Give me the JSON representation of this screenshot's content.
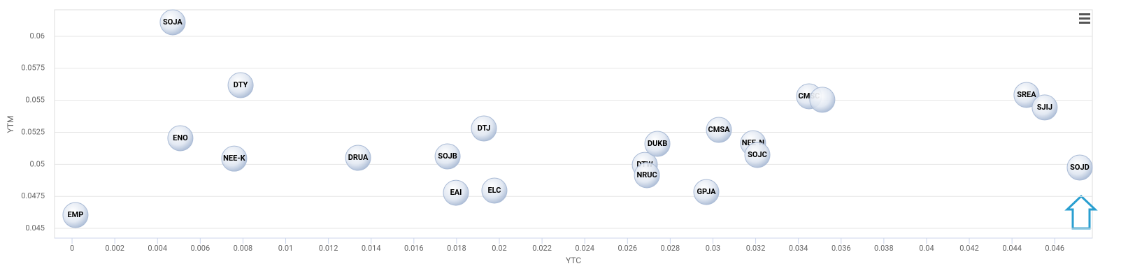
{
  "chart_data": {
    "type": "scatter",
    "x_label": "YTC",
    "y_label": "YTM",
    "labels": [
      "SOJA",
      "DTY",
      "ENO",
      "NEE-K",
      "EMP",
      "DRUA",
      "SOJB",
      "EAI",
      "ELC",
      "DTJ",
      "DTW",
      "NRUC",
      "DUKB",
      "CMSA",
      "GPJA",
      "NEE-N",
      "SOJC",
      "CMSC",
      null,
      "SREA",
      "SJIJ",
      "SOJD"
    ],
    "x": [
      0.00471,
      0.00789,
      0.00507,
      0.00759,
      0.00016,
      0.01339,
      0.01758,
      0.01797,
      0.01977,
      0.01928,
      0.02681,
      0.02691,
      0.0274,
      0.03028,
      0.02969,
      0.03188,
      0.03208,
      0.0345,
      0.03512,
      0.04468,
      0.04553,
      0.04717
    ],
    "values": [
      0.06109,
      0.05618,
      0.05204,
      0.05045,
      0.04604,
      0.05051,
      0.05062,
      0.04778,
      0.04795,
      0.0528,
      0.04996,
      0.04915,
      0.0516,
      0.05269,
      0.04784,
      0.05165,
      0.05073,
      0.05531,
      0.05504,
      0.05542,
      0.05444,
      0.04975
    ],
    "color": "#aabbd6",
    "xlim": [
      -0.00082,
      0.04776
    ],
    "ylim": [
      0.04424,
      0.06207
    ],
    "xticks": [
      0,
      0.002,
      0.004,
      0.006,
      0.008,
      0.01,
      0.012,
      0.014,
      0.016,
      0.018,
      0.02,
      0.022,
      0.024,
      0.026,
      0.028,
      0.03,
      0.032,
      0.034,
      0.036,
      0.038,
      0.04,
      0.042,
      0.044,
      0.046
    ],
    "yticks": [
      0.045,
      0.0475,
      0.05,
      0.0525,
      0.055,
      0.0575,
      0.06
    ],
    "grid": true
  }
}
